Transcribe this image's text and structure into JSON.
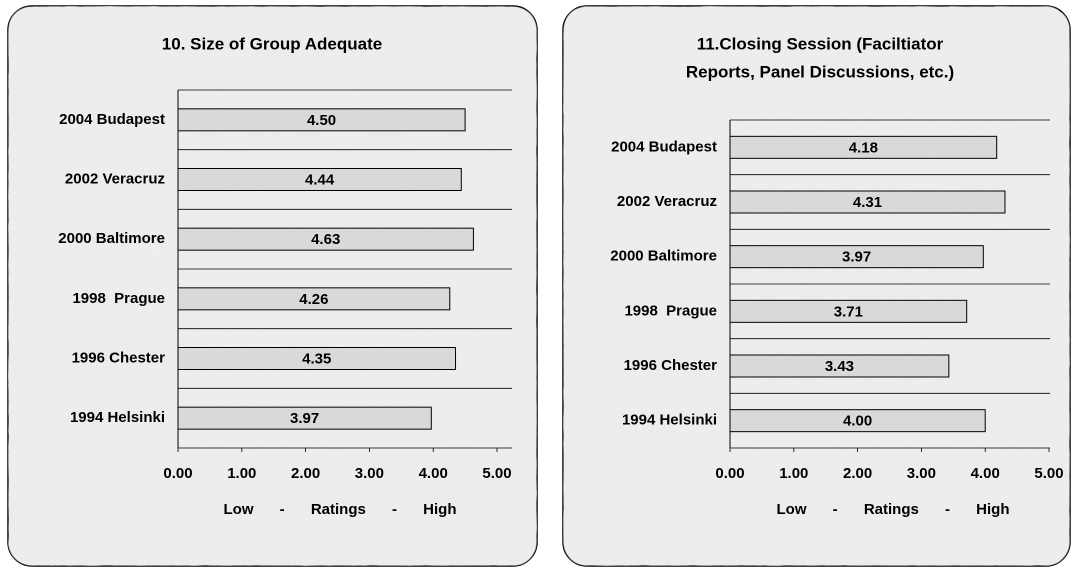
{
  "chart_data": [
    {
      "type": "bar",
      "orientation": "horizontal",
      "title": [
        "10. Size of Group Adequate"
      ],
      "categories": [
        "2004 Budapest",
        "2002 Veracruz",
        "2000 Baltimore",
        "1998  Prague",
        "1996 Chester",
        "1994 Helsinki"
      ],
      "values": [
        4.5,
        4.44,
        4.63,
        4.26,
        4.35,
        3.97
      ],
      "value_labels": [
        "4.50",
        "4.44",
        "4.63",
        "4.26",
        "4.35",
        "3.97"
      ],
      "color": "#d9d9d9",
      "xlim": [
        0,
        5
      ],
      "xticks": [
        {
          "value": 0,
          "label": "0.00"
        },
        {
          "value": 1,
          "label": "1.00"
        },
        {
          "value": 2,
          "label": "2.00"
        },
        {
          "value": 3,
          "label": "3.00"
        },
        {
          "value": 4,
          "label": "4.00"
        },
        {
          "value": 5,
          "label": "5.00"
        }
      ],
      "xlabel": "Low - Ratings - High"
    },
    {
      "type": "bar",
      "orientation": "horizontal",
      "title": [
        "11.Closing Session (Faciltiator",
        "Reports, Panel Discussions, etc.)"
      ],
      "categories": [
        "2004 Budapest",
        "2002 Veracruz",
        "2000 Baltimore",
        "1998  Prague",
        "1996 Chester",
        "1994 Helsinki"
      ],
      "values": [
        4.18,
        4.31,
        3.97,
        3.71,
        3.43,
        4.0
      ],
      "value_labels": [
        "4.18",
        "4.31",
        "3.97",
        "3.71",
        "3.43",
        "4.00"
      ],
      "color": "#d9d9d9",
      "xlim": [
        0,
        5
      ],
      "xticks": [
        {
          "value": 0,
          "label": "0.00"
        },
        {
          "value": 1,
          "label": "1.00"
        },
        {
          "value": 2,
          "label": "2.00"
        },
        {
          "value": 3,
          "label": "3.00"
        },
        {
          "value": 4,
          "label": "4.00"
        },
        {
          "value": 5,
          "label": "5.00"
        }
      ],
      "xlabel": "Low - Ratings - High"
    }
  ]
}
